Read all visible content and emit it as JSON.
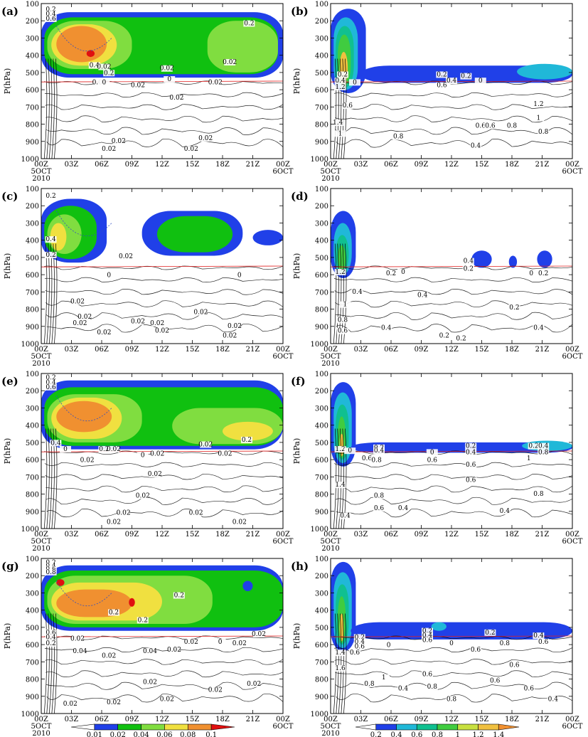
{
  "figure": {
    "ylabel": "P(hPa)",
    "yticks": [
      100,
      200,
      300,
      400,
      500,
      600,
      700,
      800,
      900,
      1000
    ],
    "xticks": [
      "00Z",
      "03Z",
      "06Z",
      "09Z",
      "12Z",
      "15Z",
      "18Z",
      "21Z",
      "00Z"
    ],
    "xstart_sub": [
      "5OCT",
      "2010"
    ],
    "xend_sub": "6OCT"
  },
  "colorbars": [
    {
      "panel_column": "left",
      "labels": [
        "0.01",
        "0.02",
        "0.04",
        "0.06",
        "0.08",
        "0.1"
      ],
      "colors": [
        "#2040e8",
        "#10c010",
        "#80dd40",
        "#f0e040",
        "#f09030",
        "#e01010"
      ]
    },
    {
      "panel_column": "right",
      "labels": [
        "0.2",
        "0.4",
        "0.6",
        "0.8",
        "1",
        "1.2",
        "1.4"
      ],
      "colors": [
        "#2040e8",
        "#20b8d8",
        "#10c090",
        "#40cc40",
        "#c8e040",
        "#f0c040",
        "#f09030"
      ]
    }
  ],
  "chart_data": [
    {
      "panel": "(a)",
      "type": "contour",
      "x": [
        "00Z",
        "03Z",
        "06Z",
        "09Z",
        "12Z",
        "15Z",
        "18Z",
        "21Z",
        "00Z"
      ],
      "y_range": [
        1000,
        100
      ],
      "shaded_regions": [
        {
          "level": 0.01,
          "t": [
            0,
            24
          ],
          "p": [
            150,
            530
          ]
        },
        {
          "level": 0.02,
          "t": [
            0.3,
            23.5
          ],
          "p": [
            180,
            510
          ]
        },
        {
          "level": 0.04,
          "t": [
            0.6,
            9
          ],
          "p": [
            200,
            480
          ]
        },
        {
          "level": 0.06,
          "t": [
            1,
            7.5
          ],
          "p": [
            220,
            460
          ]
        },
        {
          "level": 0.08,
          "t": [
            1.5,
            6.5
          ],
          "p": [
            230,
            440
          ]
        },
        {
          "level": 0.1,
          "t": [
            4.5,
            5.3
          ],
          "p": [
            370,
            410
          ]
        },
        {
          "level": 0.04,
          "t": [
            16.5,
            23.5
          ],
          "p": [
            200,
            500
          ]
        }
      ],
      "contour_labels": [
        "0.2",
        "0.4",
        "0.6",
        "0.4",
        "0.02",
        "0.2",
        "0.02",
        "0.02",
        "0.04",
        "0",
        "0.02",
        "0",
        "0.02",
        "0.02",
        "0.02",
        "0.02",
        "0.02",
        "0.02",
        "0.2"
      ]
    },
    {
      "panel": "(b)",
      "type": "contour",
      "x": [
        "00Z",
        "03Z",
        "06Z",
        "09Z",
        "12Z",
        "15Z",
        "18Z",
        "21Z",
        "00Z"
      ],
      "y_range": [
        1000,
        100
      ],
      "shaded_regions": [
        {
          "level": 0.2,
          "t": [
            0,
            3.5
          ],
          "p": [
            130,
            620
          ]
        },
        {
          "level": 0.4,
          "t": [
            0.3,
            2.7
          ],
          "p": [
            180,
            600
          ]
        },
        {
          "level": 0.6,
          "t": [
            0.5,
            2.3
          ],
          "p": [
            230,
            590
          ]
        },
        {
          "level": 0.8,
          "t": [
            0.7,
            2
          ],
          "p": [
            280,
            580
          ]
        },
        {
          "level": 1.2,
          "t": [
            0.9,
            1.7
          ],
          "p": [
            380,
            570
          ]
        },
        {
          "level": 0.2,
          "t": [
            3,
            24
          ],
          "p": [
            460,
            560
          ]
        },
        {
          "level": 0.4,
          "t": [
            18.5,
            24
          ],
          "p": [
            450,
            540
          ]
        }
      ],
      "contour_labels": [
        "0.2",
        "0.4",
        "0",
        "0.2",
        "0.4",
        "0.6",
        "1.2",
        "0.6",
        "1.4",
        "1",
        "0.8",
        "0.6",
        "0.6",
        "0.8",
        "1.2",
        "1",
        "0.8",
        "0.4",
        "0.2",
        "0"
      ]
    },
    {
      "panel": "(c)",
      "type": "contour",
      "x": [
        "00Z",
        "03Z",
        "06Z",
        "09Z",
        "12Z",
        "15Z",
        "18Z",
        "21Z",
        "00Z"
      ],
      "y_range": [
        1000,
        100
      ],
      "shaded_regions": [
        {
          "level": 0.01,
          "t": [
            0,
            6.5
          ],
          "p": [
            160,
            530
          ]
        },
        {
          "level": 0.02,
          "t": [
            0.3,
            5.5
          ],
          "p": [
            200,
            510
          ]
        },
        {
          "level": 0.04,
          "t": [
            0.6,
            4
          ],
          "p": [
            250,
            480
          ]
        },
        {
          "level": 0.06,
          "t": [
            0.9,
            2.5
          ],
          "p": [
            300,
            460
          ]
        },
        {
          "level": 0.01,
          "t": [
            10,
            20
          ],
          "p": [
            230,
            490
          ]
        },
        {
          "level": 0.02,
          "t": [
            11.5,
            19
          ],
          "p": [
            260,
            470
          ]
        },
        {
          "level": 0.01,
          "t": [
            21,
            24
          ],
          "p": [
            340,
            430
          ]
        }
      ],
      "contour_labels": [
        "0.2",
        "0.4",
        "0.2",
        "0.02",
        "0",
        "0",
        "0.02",
        "0.02",
        "0.02",
        "0.02",
        "0.02",
        "0.02",
        "0.02",
        "0.02",
        "0.02",
        "0.02"
      ]
    },
    {
      "panel": "(d)",
      "type": "contour",
      "x": [
        "00Z",
        "03Z",
        "06Z",
        "09Z",
        "12Z",
        "15Z",
        "18Z",
        "21Z",
        "00Z"
      ],
      "y_range": [
        1000,
        100
      ],
      "shaded_regions": [
        {
          "level": 0.2,
          "t": [
            0,
            2.5
          ],
          "p": [
            230,
            620
          ]
        },
        {
          "level": 0.4,
          "t": [
            0.3,
            2.1
          ],
          "p": [
            300,
            600
          ]
        },
        {
          "level": 0.6,
          "t": [
            0.5,
            1.8
          ],
          "p": [
            370,
            590
          ]
        },
        {
          "level": 0.8,
          "t": [
            0.7,
            1.5
          ],
          "p": [
            430,
            580
          ]
        },
        {
          "level": 0.2,
          "t": [
            14,
            16
          ],
          "p": [
            460,
            560
          ]
        },
        {
          "level": 0.2,
          "t": [
            17.7,
            18.5
          ],
          "p": [
            490,
            560
          ]
        },
        {
          "level": 0.2,
          "t": [
            20.5,
            22
          ],
          "p": [
            460,
            560
          ]
        }
      ],
      "contour_labels": [
        "1.2",
        "0.2",
        "0",
        "0.4",
        "0.4",
        "1",
        "0.8",
        "0.4",
        "0.6",
        "0.2",
        "0.2",
        "0.4",
        "0.4",
        "0.2",
        "0",
        "0.2",
        "0.2"
      ]
    },
    {
      "panel": "(e)",
      "type": "contour",
      "x": [
        "00Z",
        "03Z",
        "06Z",
        "09Z",
        "12Z",
        "15Z",
        "18Z",
        "21Z",
        "00Z"
      ],
      "y_range": [
        1000,
        100
      ],
      "shaded_regions": [
        {
          "level": 0.01,
          "t": [
            0,
            24
          ],
          "p": [
            140,
            540
          ]
        },
        {
          "level": 0.02,
          "t": [
            0.3,
            24
          ],
          "p": [
            180,
            520
          ]
        },
        {
          "level": 0.04,
          "t": [
            0.6,
            10
          ],
          "p": [
            220,
            500
          ]
        },
        {
          "level": 0.06,
          "t": [
            1,
            8
          ],
          "p": [
            240,
            480
          ]
        },
        {
          "level": 0.08,
          "t": [
            1.5,
            7
          ],
          "p": [
            260,
            440
          ]
        },
        {
          "level": 0.04,
          "t": [
            13,
            24
          ],
          "p": [
            300,
            510
          ]
        },
        {
          "level": 0.06,
          "t": [
            18,
            23
          ],
          "p": [
            380,
            490
          ]
        }
      ],
      "contour_labels": [
        "0.2",
        "0.4",
        "0.6",
        "0.4",
        "0",
        "0.2",
        "0.02",
        "0.02",
        "0",
        "0.02",
        "0.02",
        "0.2",
        "0.02",
        "0.02",
        "0.02",
        "0.02",
        "0.02",
        "0.02",
        "0.02"
      ]
    },
    {
      "panel": "(f)",
      "type": "contour",
      "x": [
        "00Z",
        "03Z",
        "06Z",
        "09Z",
        "12Z",
        "15Z",
        "18Z",
        "21Z",
        "00Z"
      ],
      "y_range": [
        1000,
        100
      ],
      "shaded_regions": [
        {
          "level": 0.2,
          "t": [
            0,
            2.5
          ],
          "p": [
            150,
            640
          ]
        },
        {
          "level": 0.4,
          "t": [
            0.3,
            2.1
          ],
          "p": [
            210,
            620
          ]
        },
        {
          "level": 0.6,
          "t": [
            0.5,
            1.8
          ],
          "p": [
            280,
            600
          ]
        },
        {
          "level": 0.8,
          "t": [
            0.7,
            1.5
          ],
          "p": [
            350,
            590
          ]
        },
        {
          "level": 1.2,
          "t": [
            0.9,
            1.3
          ],
          "p": [
            450,
            580
          ]
        },
        {
          "level": 0.2,
          "t": [
            2,
            24
          ],
          "p": [
            500,
            560
          ]
        },
        {
          "level": 0.4,
          "t": [
            19,
            24
          ],
          "p": [
            490,
            550
          ]
        }
      ],
      "contour_labels": [
        "1.2",
        "0",
        "0.6",
        "0.2",
        "0.4",
        "0.8",
        "0",
        "0.2",
        "0.4",
        "0.6",
        "0.6",
        "0.6",
        "1",
        "0.8",
        "1.4",
        "0.8",
        "0.4",
        "0.6",
        "0.4",
        "0.4",
        "0.2",
        "0.4",
        "0.8"
      ]
    },
    {
      "panel": "(g)",
      "type": "contour",
      "x": [
        "00Z",
        "03Z",
        "06Z",
        "09Z",
        "12Z",
        "15Z",
        "18Z",
        "21Z",
        "00Z"
      ],
      "y_range": [
        1000,
        100
      ],
      "shaded_regions": [
        {
          "level": 0.01,
          "t": [
            0,
            24
          ],
          "p": [
            140,
            520
          ]
        },
        {
          "level": 0.02,
          "t": [
            0.3,
            24
          ],
          "p": [
            170,
            500
          ]
        },
        {
          "level": 0.04,
          "t": [
            0.6,
            17
          ],
          "p": [
            200,
            480
          ]
        },
        {
          "level": 0.06,
          "t": [
            1,
            12
          ],
          "p": [
            240,
            460
          ]
        },
        {
          "level": 0.08,
          "t": [
            1.5,
            9
          ],
          "p": [
            280,
            440
          ]
        },
        {
          "level": 0.1,
          "t": [
            1.5,
            2.3
          ],
          "p": [
            220,
            260
          ]
        },
        {
          "level": 0.1,
          "t": [
            8.7,
            9.3
          ],
          "p": [
            330,
            380
          ]
        },
        {
          "level": 0.01,
          "t": [
            20,
            21
          ],
          "p": [
            230,
            290
          ]
        }
      ],
      "contour_labels": [
        "0.2",
        "0.4",
        "0.6",
        "0.8",
        "0.6",
        "0.4",
        "0.2",
        "0.2",
        "0.2",
        "0.2",
        "0.02",
        "0.04",
        "0.02",
        "0.04",
        "0.02",
        "0.02",
        "0",
        "0.02",
        "0.02",
        "0.02",
        "0.02",
        "0.02",
        "0.02",
        "0.02",
        "0.02"
      ]
    },
    {
      "panel": "(h)",
      "type": "contour",
      "x": [
        "00Z",
        "03Z",
        "06Z",
        "09Z",
        "12Z",
        "15Z",
        "18Z",
        "21Z",
        "00Z"
      ],
      "y_range": [
        1000,
        100
      ],
      "shaded_regions": [
        {
          "level": 0.2,
          "t": [
            0,
            2.5
          ],
          "p": [
            120,
            640
          ]
        },
        {
          "level": 0.4,
          "t": [
            0.3,
            2.1
          ],
          "p": [
            180,
            620
          ]
        },
        {
          "level": 0.6,
          "t": [
            0.5,
            1.8
          ],
          "p": [
            250,
            600
          ]
        },
        {
          "level": 0.8,
          "t": [
            0.7,
            1.5
          ],
          "p": [
            320,
            590
          ]
        },
        {
          "level": 1.2,
          "t": [
            0.9,
            1.3
          ],
          "p": [
            420,
            580
          ]
        },
        {
          "level": 0.2,
          "t": [
            2,
            24
          ],
          "p": [
            470,
            570
          ]
        },
        {
          "level": 0.4,
          "t": [
            10,
            11.5
          ],
          "p": [
            470,
            520
          ]
        }
      ],
      "contour_labels": [
        "0.2",
        "0.4",
        "0.6",
        "1.4",
        "0.6",
        "0",
        "1.6",
        "0.2",
        "0.4",
        "0.6",
        "0.8",
        "0.6",
        "0.8",
        "0",
        "0.2",
        "0.4",
        "0.6",
        "0.8",
        "0.6",
        "0.6",
        "0.4",
        "1",
        "0.8",
        "0.6",
        "0.6",
        "0.4"
      ]
    }
  ]
}
